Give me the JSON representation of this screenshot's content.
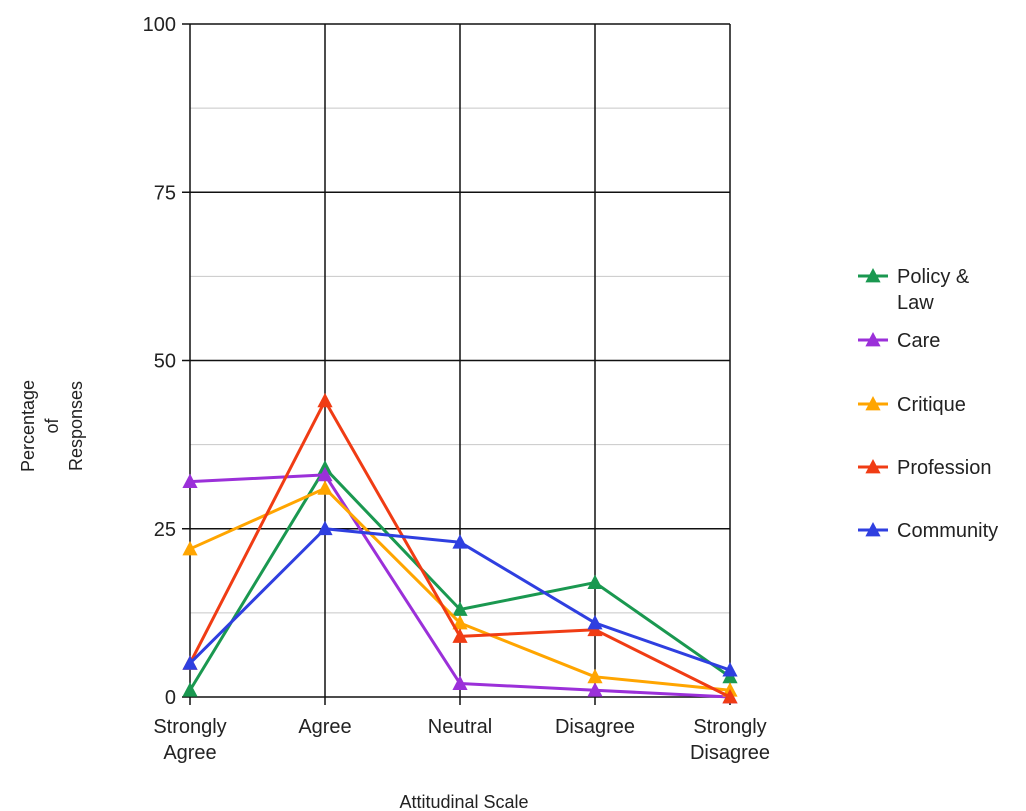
{
  "chart_data": {
    "type": "line",
    "categories": [
      "Strongly Agree",
      "Agree",
      "Neutral",
      "Disagree",
      "Strongly Disagree"
    ],
    "category_lines": [
      [
        "Strongly",
        "Agree"
      ],
      [
        "Agree"
      ],
      [
        "Neutral"
      ],
      [
        "Disagree"
      ],
      [
        "Strongly",
        "Disagree"
      ]
    ],
    "series": [
      {
        "name": "Policy & Law",
        "legend_lines": [
          "Policy &",
          "Law"
        ],
        "color": "#1a9850",
        "values": [
          1,
          34,
          13,
          17,
          3
        ]
      },
      {
        "name": "Care",
        "legend_lines": [
          "Care"
        ],
        "color": "#9b30d9",
        "values": [
          32,
          33,
          2,
          1,
          0
        ]
      },
      {
        "name": "Critique",
        "legend_lines": [
          "Critique"
        ],
        "color": "#ffa500",
        "values": [
          22,
          31,
          11,
          3,
          1
        ]
      },
      {
        "name": "Profession",
        "legend_lines": [
          "Profession"
        ],
        "color": "#f03c14",
        "values": [
          5,
          44,
          9,
          10,
          0
        ]
      },
      {
        "name": "Community",
        "legend_lines": [
          "Community"
        ],
        "color": "#2f3fe0",
        "values": [
          5,
          25,
          23,
          11,
          4
        ]
      }
    ],
    "xlabel": "Attitudinal Scale",
    "ylabel_lines": [
      "Percentage",
      "of",
      "Responses"
    ],
    "ylim": [
      0,
      100
    ],
    "yticks": [
      0,
      25,
      50,
      75,
      100
    ],
    "minor_gridlines": true,
    "legend_position": "right",
    "marker": "triangle"
  }
}
